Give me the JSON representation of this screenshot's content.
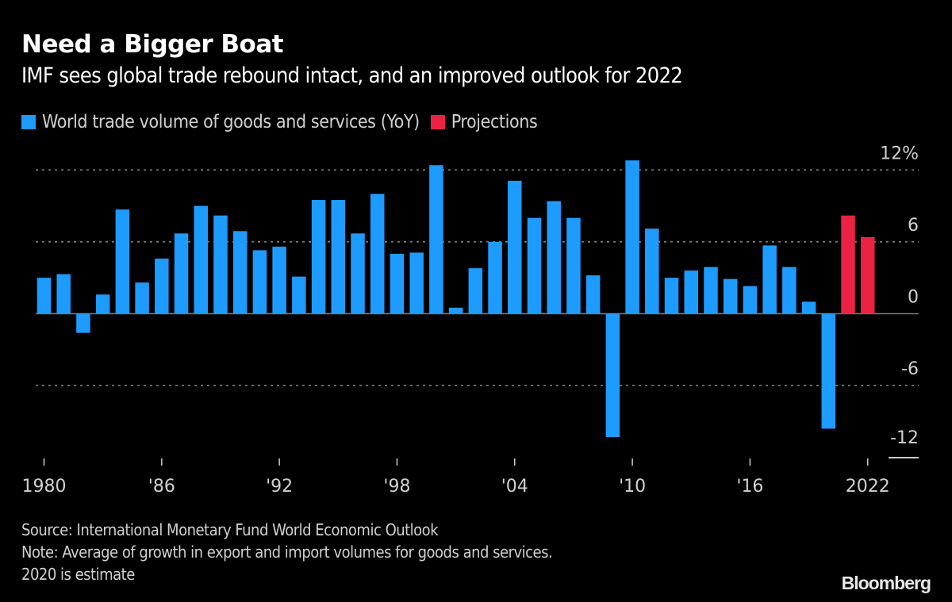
{
  "header": {
    "title": "Need a Bigger Boat",
    "subtitle": "IMF sees global trade rebound intact, and an improved outlook for 2022"
  },
  "legend": [
    {
      "label": "World trade volume of goods and services (YoY)",
      "color": "#1e9bff"
    },
    {
      "label": "Projections",
      "color": "#eb2244"
    }
  ],
  "footer": {
    "source": "Source: International Monetary Fund World Economic Outlook",
    "note": "Note: Average of growth in export and import volumes for goods and services.",
    "note2": "2020 is estimate",
    "brand": "Bloomberg"
  },
  "chart_data": {
    "type": "bar",
    "title": "Need a Bigger Boat",
    "subtitle": "IMF sees global trade rebound intact, and an improved outlook for 2022",
    "xlabel": "",
    "ylabel": "",
    "ylim": [
      -12,
      12
    ],
    "yticks": [
      12,
      6,
      0,
      -6,
      -12
    ],
    "ytick_labels": [
      "12%",
      "6",
      "0",
      "-6",
      "-12"
    ],
    "xtick_years": [
      1980,
      1986,
      1992,
      1998,
      2004,
      2010,
      2016,
      2022
    ],
    "xtick_labels": [
      "1980",
      "'86",
      "'92",
      "'98",
      "'04",
      "'10",
      "'16",
      "2022"
    ],
    "grid": true,
    "legend_position": "top-left",
    "categories": [
      1980,
      1981,
      1982,
      1983,
      1984,
      1985,
      1986,
      1987,
      1988,
      1989,
      1990,
      1991,
      1992,
      1993,
      1994,
      1995,
      1996,
      1997,
      1998,
      1999,
      2000,
      2001,
      2002,
      2003,
      2004,
      2005,
      2006,
      2007,
      2008,
      2009,
      2010,
      2011,
      2012,
      2013,
      2014,
      2015,
      2016,
      2017,
      2018,
      2019,
      2020,
      2021,
      2022
    ],
    "series": [
      {
        "name": "World trade volume of goods and services (YoY)",
        "color": "#1e9bff",
        "values": [
          3.0,
          3.3,
          -1.6,
          1.6,
          8.7,
          2.6,
          4.6,
          6.7,
          9.0,
          8.2,
          6.9,
          5.3,
          5.6,
          3.1,
          9.5,
          9.5,
          6.7,
          10.0,
          5.0,
          5.1,
          12.4,
          0.5,
          3.8,
          6.0,
          11.1,
          8.0,
          9.4,
          8.0,
          3.2,
          -10.3,
          12.8,
          7.1,
          3.0,
          3.6,
          3.9,
          2.9,
          2.3,
          5.7,
          3.9,
          1.0,
          -9.6,
          null,
          null
        ]
      },
      {
        "name": "Projections",
        "color": "#eb2244",
        "values": [
          null,
          null,
          null,
          null,
          null,
          null,
          null,
          null,
          null,
          null,
          null,
          null,
          null,
          null,
          null,
          null,
          null,
          null,
          null,
          null,
          null,
          null,
          null,
          null,
          null,
          null,
          null,
          null,
          null,
          null,
          null,
          null,
          null,
          null,
          null,
          null,
          null,
          null,
          null,
          null,
          null,
          8.2,
          6.4
        ]
      }
    ]
  }
}
